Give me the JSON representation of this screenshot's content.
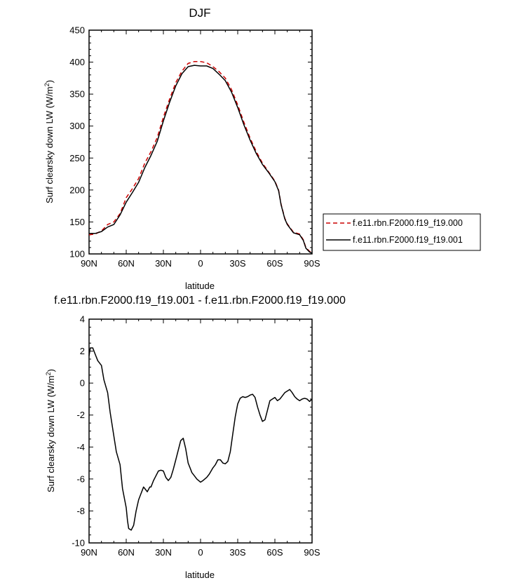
{
  "chart_data": [
    {
      "type": "line",
      "title": "DJF",
      "xlabel": "latitude",
      "ylabel": "Surf clearsky down LW (W/m²)",
      "ylabel_main": "Surf clearsky down LW (W/m",
      "ylabel_sup": "2",
      "ylabel_tail": ")",
      "xlim": [
        90,
        -90
      ],
      "ylim": [
        100,
        450
      ],
      "xticks": [
        {
          "value": 90,
          "label": "90N"
        },
        {
          "value": 60,
          "label": "60N"
        },
        {
          "value": 30,
          "label": "30N"
        },
        {
          "value": 0,
          "label": "0"
        },
        {
          "value": -30,
          "label": "30S"
        },
        {
          "value": -60,
          "label": "60S"
        },
        {
          "value": -90,
          "label": "90S"
        }
      ],
      "yticks": [
        {
          "value": 100,
          "label": "100"
        },
        {
          "value": 150,
          "label": "150"
        },
        {
          "value": 200,
          "label": "200"
        },
        {
          "value": 250,
          "label": "250"
        },
        {
          "value": 300,
          "label": "300"
        },
        {
          "value": 350,
          "label": "350"
        },
        {
          "value": 400,
          "label": "400"
        },
        {
          "value": 450,
          "label": "450"
        }
      ],
      "grid": false,
      "legend_position": "right",
      "series": [
        {
          "name": "f.e11.rbn.F2000.f19_f19.000",
          "color": "#cc0000",
          "dash": "dashed",
          "x": [
            90,
            85,
            80,
            75,
            70,
            65,
            60,
            55,
            50,
            45,
            40,
            35,
            30,
            25,
            20,
            15,
            10,
            5,
            0,
            -5,
            -10,
            -15,
            -20,
            -25,
            -30,
            -35,
            -40,
            -45,
            -50,
            -55,
            -60,
            -63,
            -65,
            -68,
            -70,
            -75,
            -80,
            -83,
            -85,
            -88,
            -90
          ],
          "y": [
            130,
            131,
            136,
            146,
            150,
            163,
            188,
            202,
            218,
            242,
            260,
            282,
            314,
            342,
            368,
            386,
            398,
            401,
            401,
            399,
            393,
            385,
            375,
            357,
            333,
            306,
            281,
            260,
            242,
            228,
            214,
            200,
            178,
            156,
            147,
            134,
            131,
            122,
            110,
            104,
            102
          ]
        },
        {
          "name": "f.e11.rbn.F2000.f19_f19.001",
          "color": "#000000",
          "dash": "solid",
          "x": [
            90,
            85,
            80,
            75,
            70,
            65,
            60,
            55,
            50,
            45,
            40,
            35,
            30,
            25,
            20,
            15,
            10,
            5,
            0,
            -5,
            -10,
            -15,
            -20,
            -25,
            -30,
            -35,
            -40,
            -45,
            -50,
            -55,
            -60,
            -63,
            -65,
            -68,
            -70,
            -75,
            -80,
            -83,
            -85,
            -88,
            -90
          ],
          "y": [
            132,
            132,
            135,
            142,
            146,
            161,
            181,
            196,
            212,
            235,
            254,
            276,
            308,
            337,
            363,
            382,
            393,
            395,
            394,
            394,
            390,
            381,
            371,
            353,
            329,
            302,
            278,
            257,
            240,
            227,
            213,
            199,
            177,
            155,
            146,
            133,
            130,
            121,
            109,
            103,
            101
          ]
        }
      ]
    },
    {
      "type": "line",
      "title": "f.e11.rbn.F2000.f19_f19.001 - f.e11.rbn.F2000.f19_f19.000",
      "xlabel": "latitude",
      "ylabel": "Surf clearsky down LW (W/m²)",
      "ylabel_main": "Surf clearsky down LW (W/m",
      "ylabel_sup": "2",
      "ylabel_tail": ")",
      "xlim": [
        90,
        -90
      ],
      "ylim": [
        -10,
        4
      ],
      "xticks": [
        {
          "value": 90,
          "label": "90N"
        },
        {
          "value": 60,
          "label": "60N"
        },
        {
          "value": 30,
          "label": "30N"
        },
        {
          "value": 0,
          "label": "0"
        },
        {
          "value": -30,
          "label": "30S"
        },
        {
          "value": -60,
          "label": "60S"
        },
        {
          "value": -90,
          "label": "90S"
        }
      ],
      "yticks": [
        {
          "value": -10,
          "label": "-10"
        },
        {
          "value": -8,
          "label": "-8"
        },
        {
          "value": -6,
          "label": "-6"
        },
        {
          "value": -4,
          "label": "-4"
        },
        {
          "value": -2,
          "label": "-2"
        },
        {
          "value": 0,
          "label": "0"
        },
        {
          "value": 2,
          "label": "2"
        },
        {
          "value": 4,
          "label": "4"
        }
      ],
      "grid": false,
      "series": [
        {
          "color": "#000000",
          "dash": "solid",
          "x": [
            90,
            89,
            87,
            85,
            83,
            80,
            78,
            75,
            73,
            70,
            68,
            65,
            63,
            60,
            59,
            58,
            56,
            54,
            52,
            50,
            48,
            46,
            45,
            43,
            41,
            40,
            38,
            36,
            34,
            32,
            30,
            28,
            26,
            24,
            22,
            20,
            18,
            16,
            14,
            12,
            10,
            8,
            7,
            5,
            3,
            0,
            -2,
            -5,
            -7,
            -10,
            -12,
            -14,
            -16,
            -18,
            -20,
            -22,
            -24,
            -26,
            -28,
            -30,
            -32,
            -34,
            -36,
            -38,
            -40,
            -42,
            -44,
            -46,
            -48,
            -50,
            -52,
            -54,
            -56,
            -58,
            -60,
            -62,
            -64,
            -66,
            -68,
            -70,
            -72,
            -74,
            -76,
            -78,
            -80,
            -82,
            -84,
            -86,
            -88,
            -90
          ],
          "y": [
            1.7,
            2.2,
            2.2,
            1.8,
            1.4,
            1.1,
            0.2,
            -0.6,
            -1.8,
            -3.3,
            -4.3,
            -5.1,
            -6.6,
            -7.8,
            -8.6,
            -9.1,
            -9.2,
            -8.9,
            -8.0,
            -7.3,
            -6.9,
            -6.5,
            -6.6,
            -6.8,
            -6.5,
            -6.5,
            -6.1,
            -5.8,
            -5.5,
            -5.45,
            -5.5,
            -5.9,
            -6.1,
            -5.9,
            -5.4,
            -4.8,
            -4.2,
            -3.6,
            -3.45,
            -4.1,
            -5.0,
            -5.4,
            -5.6,
            -5.8,
            -6.0,
            -6.2,
            -6.1,
            -5.9,
            -5.7,
            -5.3,
            -5.1,
            -4.8,
            -4.8,
            -5.0,
            -5.05,
            -4.9,
            -4.3,
            -3.2,
            -2.1,
            -1.3,
            -0.95,
            -0.85,
            -0.9,
            -0.85,
            -0.75,
            -0.7,
            -0.9,
            -1.5,
            -2.0,
            -2.4,
            -2.3,
            -1.7,
            -1.1,
            -1.0,
            -0.9,
            -1.1,
            -1.0,
            -0.8,
            -0.6,
            -0.5,
            -0.4,
            -0.6,
            -0.85,
            -1.0,
            -1.1,
            -1.0,
            -0.95,
            -1.0,
            -1.15,
            -1.0
          ]
        }
      ]
    }
  ]
}
